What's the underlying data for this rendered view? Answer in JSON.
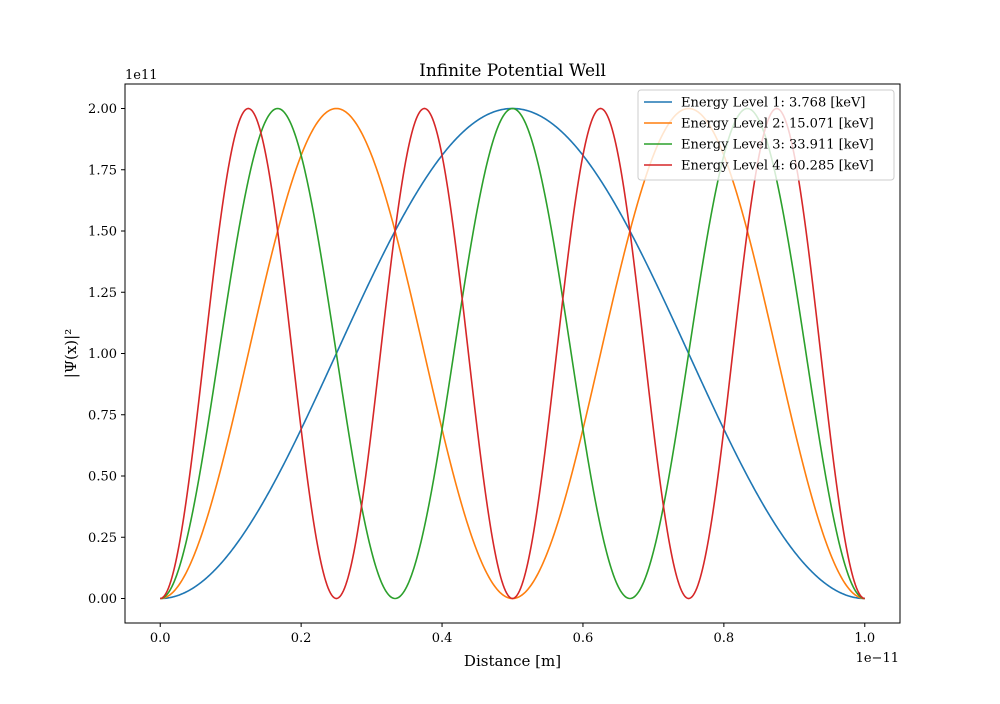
{
  "chart_data": {
    "type": "line",
    "title": "Infinite Potential Well",
    "xlabel": "Distance [m]",
    "ylabel": "|Ψ(x)|²",
    "x_offset_label": "1e−11",
    "y_offset_label": "1e11",
    "x_scale": 1e-11,
    "y_scale": 100000000000.0,
    "xlim": [
      -0.05,
      1.05
    ],
    "ylim": [
      -0.1,
      2.1
    ],
    "x_ticks": [
      0.0,
      0.2,
      0.4,
      0.6,
      0.8,
      1.0
    ],
    "x_tick_labels": [
      "0.0",
      "0.2",
      "0.4",
      "0.6",
      "0.8",
      "1.0"
    ],
    "y_ticks": [
      0.0,
      0.25,
      0.5,
      0.75,
      1.0,
      1.25,
      1.5,
      1.75,
      2.0
    ],
    "y_tick_labels": [
      "0.00",
      "0.25",
      "0.50",
      "0.75",
      "1.00",
      "1.25",
      "1.50",
      "1.75",
      "2.00"
    ],
    "grid": false,
    "legend_position": "top-right",
    "series": [
      {
        "name": "Energy Level 1: 3.768 [keV]",
        "color": "#1f77b4",
        "n": 1,
        "formula": "2*sin^2(n*pi*x)",
        "x": [
          0,
          0.125,
          0.25,
          0.375,
          0.5,
          0.625,
          0.75,
          0.875,
          1.0
        ],
        "values": [
          0.0,
          0.293,
          1.0,
          1.707,
          2.0,
          1.707,
          1.0,
          0.293,
          0.0
        ]
      },
      {
        "name": "Energy Level 2: 15.071 [keV]",
        "color": "#ff7f0e",
        "n": 2,
        "formula": "2*sin^2(n*pi*x)",
        "x": [
          0,
          0.125,
          0.25,
          0.375,
          0.5,
          0.625,
          0.75,
          0.875,
          1.0
        ],
        "values": [
          0.0,
          1.0,
          2.0,
          1.0,
          0.0,
          1.0,
          2.0,
          1.0,
          0.0
        ]
      },
      {
        "name": "Energy Level 3: 33.911 [keV]",
        "color": "#2ca02c",
        "n": 3,
        "formula": "2*sin^2(n*pi*x)",
        "x": [
          0,
          0.167,
          0.333,
          0.5,
          0.667,
          0.833,
          1.0
        ],
        "values": [
          0.0,
          2.0,
          0.0,
          2.0,
          0.0,
          2.0,
          0.0
        ]
      },
      {
        "name": "Energy Level 4: 60.285 [keV]",
        "color": "#d62728",
        "n": 4,
        "formula": "2*sin^2(n*pi*x)",
        "x": [
          0,
          0.125,
          0.25,
          0.375,
          0.5,
          0.625,
          0.75,
          0.875,
          1.0
        ],
        "values": [
          0.0,
          2.0,
          0.0,
          2.0,
          0.0,
          2.0,
          0.0,
          2.0,
          0.0
        ]
      }
    ]
  }
}
